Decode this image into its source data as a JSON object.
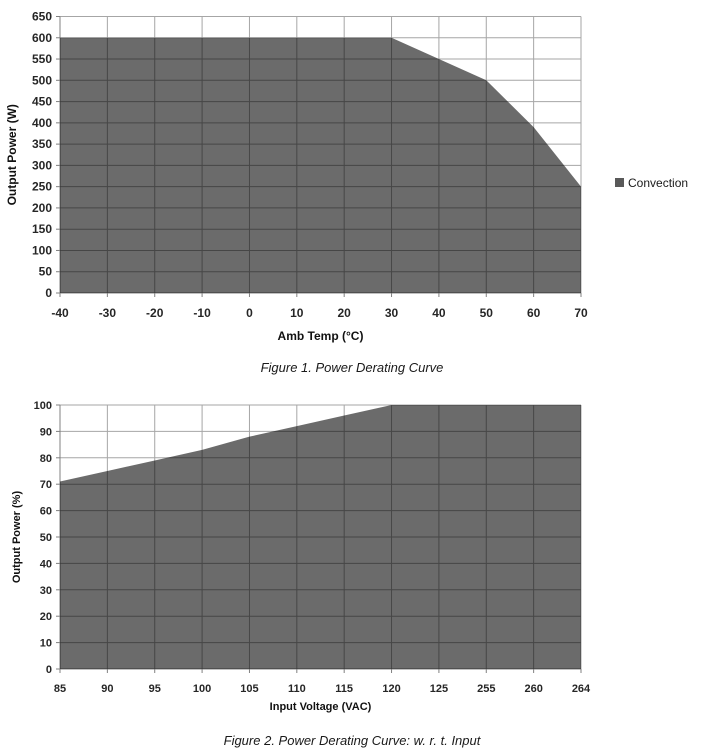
{
  "page": {
    "background": "#ffffff"
  },
  "colors": {
    "area_fill": "#000000",
    "area_opacity": 0.58,
    "gridline": "#a6a6a6",
    "axis": "#808080",
    "tick_text": "#262626",
    "title_text": "#111111",
    "caption_text": "#1a1a1a",
    "legend_swatch": "#595959"
  },
  "chart_data": [
    {
      "type": "area",
      "title": "",
      "xlabel": "Amb Temp (°C)",
      "ylabel": "Output Power (W)",
      "categories": [
        "-40",
        "-30",
        "-20",
        "-10",
        "0",
        "10",
        "20",
        "30",
        "40",
        "50",
        "60",
        "70"
      ],
      "series": [
        {
          "name": "Convection",
          "values": [
            600,
            600,
            600,
            600,
            600,
            600,
            600,
            600,
            550,
            500,
            390,
            250
          ]
        }
      ],
      "ylim": [
        0,
        650
      ],
      "ytick_step": 50,
      "grid": true,
      "legend_position": "right",
      "legend": [
        {
          "label": "Convection",
          "color": "#595959"
        }
      ],
      "caption": "Figure 1. Power Derating Curve"
    },
    {
      "type": "area",
      "title": "",
      "xlabel": "Input Voltage (VAC)",
      "ylabel": "Output Power (%)",
      "categories": [
        "85",
        "90",
        "95",
        "100",
        "105",
        "110",
        "115",
        "120",
        "125",
        "255",
        "260",
        "264"
      ],
      "series": [
        {
          "name": "",
          "values": [
            71,
            75,
            79,
            83,
            88,
            92,
            96,
            100,
            100,
            100,
            100,
            100
          ]
        }
      ],
      "ylim": [
        0,
        100
      ],
      "ytick_step": 10,
      "grid": true,
      "legend_position": "none",
      "legend": [],
      "caption": "Figure 2. Power Derating Curve: w. r. t. Input"
    }
  ]
}
